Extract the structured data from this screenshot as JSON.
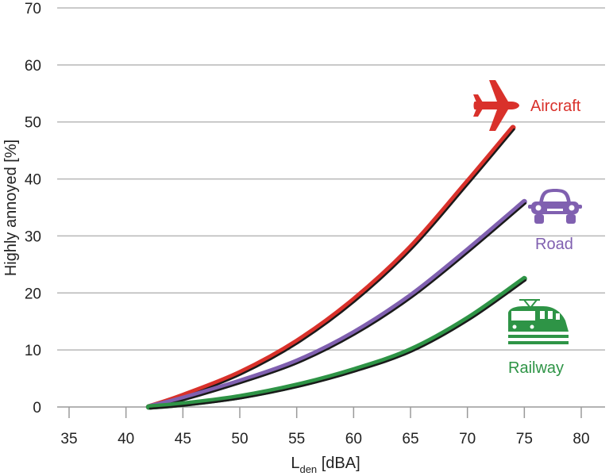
{
  "chart_data": {
    "type": "line",
    "title": "",
    "xlabel_main": "L",
    "xlabel_sub": "den",
    "xlabel_unit": " [dBA]",
    "ylabel": "Highly annoyed [%]",
    "xlim": [
      35,
      80
    ],
    "ylim": [
      0,
      70
    ],
    "x_ticks": [
      35,
      40,
      45,
      50,
      55,
      60,
      65,
      70,
      75,
      80
    ],
    "y_ticks": [
      0,
      10,
      20,
      30,
      40,
      50,
      60,
      70
    ],
    "grid": "horizontal",
    "legend": "inline labels at line ends",
    "series": [
      {
        "name": "Aircraft",
        "color": "#d9312b",
        "icon": "airplane-icon",
        "x": [
          42,
          45,
          50,
          55,
          60,
          65,
          70,
          74
        ],
        "y": [
          0,
          2,
          6,
          11.5,
          18.8,
          28,
          39.5,
          49
        ]
      },
      {
        "name": "Road",
        "color": "#8060b0",
        "icon": "car-icon",
        "x": [
          42,
          45,
          50,
          55,
          60,
          65,
          70,
          75
        ],
        "y": [
          0,
          1.5,
          4.5,
          8,
          13,
          19.5,
          27.5,
          36
        ]
      },
      {
        "name": "Railway",
        "color": "#2e9446",
        "icon": "train-icon",
        "x": [
          42,
          45,
          50,
          55,
          60,
          65,
          70,
          75
        ],
        "y": [
          0,
          0.5,
          1.8,
          3.8,
          6.5,
          10,
          15.5,
          22.5
        ]
      }
    ]
  }
}
